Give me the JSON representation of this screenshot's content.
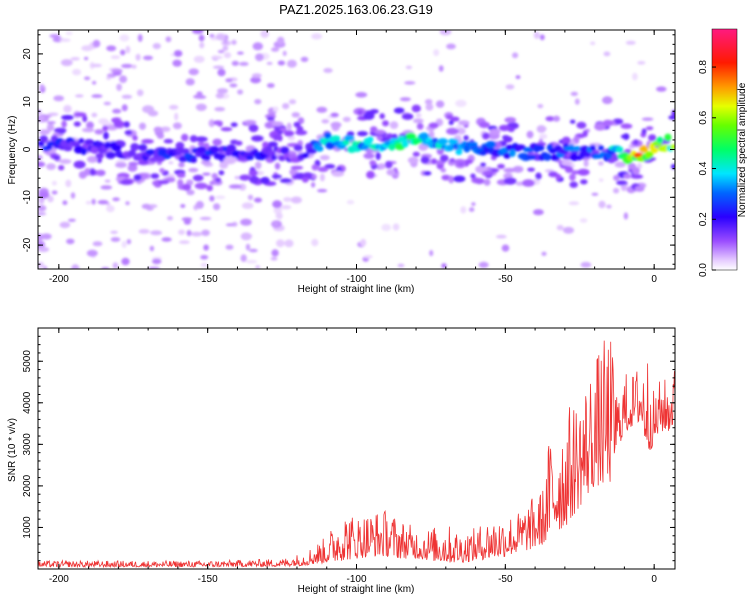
{
  "page_title": "PAZ1.2025.163.06.23.G19",
  "chart_data": [
    {
      "type": "heatmap",
      "title": "PAZ1.2025.163.06.23.G19",
      "xlabel": "Height of straight line (km)",
      "ylabel": "Frequency (Hz)",
      "xlim": [
        -207,
        7
      ],
      "ylim": [
        -25,
        25
      ],
      "x_ticks": [
        "-200",
        "-150",
        "-100",
        "-50",
        "0"
      ],
      "y_ticks": [
        "20",
        "10",
        "0",
        "-10",
        "-20"
      ],
      "colorbar": {
        "label": "Normalized spectral amplitude",
        "range": [
          0.0,
          0.95
        ],
        "ticks": [
          "0.0",
          "0.2",
          "0.4",
          "0.6",
          "0.8"
        ],
        "colormap": "rainbow (white-violet-blue-cyan-green-yellow-red-magenta)"
      },
      "ridge": {
        "description": "Dominant frequency ridge",
        "x": [
          -205,
          -190,
          -175,
          -160,
          -145,
          -130,
          -120,
          -110,
          -100,
          -90,
          -80,
          -75,
          -65,
          -55,
          -45,
          -35,
          -25,
          -15,
          -10,
          -5,
          0,
          5
        ],
        "frequency": [
          1.5,
          0.5,
          -0.5,
          -1.5,
          -1,
          -0.5,
          -1,
          2,
          1,
          1,
          2,
          2,
          0,
          0,
          -0.5,
          -0.5,
          -0.5,
          -0.5,
          -1.5,
          -1.5,
          0.5,
          1.5
        ],
        "amplitude": [
          0.25,
          0.2,
          0.2,
          0.25,
          0.25,
          0.2,
          0.15,
          0.4,
          0.45,
          0.5,
          0.45,
          0.4,
          0.35,
          0.3,
          0.3,
          0.3,
          0.3,
          0.3,
          0.7,
          0.8,
          0.85,
          0.6
        ]
      }
    },
    {
      "type": "line",
      "xlabel": "Height of straight line (km)",
      "ylabel": "SNR (10 * v/v)",
      "xlim": [
        -207,
        7
      ],
      "ylim": [
        0,
        5800
      ],
      "x_ticks": [
        "-200",
        "-150",
        "-100",
        "-50",
        "0"
      ],
      "y_ticks": [
        "1000",
        "2000",
        "3000",
        "4000",
        "5000"
      ],
      "line_color": "#ee3333",
      "envelope": {
        "x": [
          -207,
          -180,
          -150,
          -125,
          -118,
          -110,
          -105,
          -100,
          -95,
          -90,
          -85,
          -80,
          -75,
          -70,
          -65,
          -60,
          -55,
          -50,
          -45,
          -40,
          -37,
          -35,
          -30,
          -25,
          -20,
          -15,
          -12,
          -10,
          -8,
          -5,
          -2,
          0,
          2,
          5,
          7
        ],
        "min": [
          50,
          50,
          50,
          60,
          80,
          150,
          200,
          250,
          300,
          300,
          250,
          250,
          200,
          150,
          150,
          200,
          250,
          300,
          400,
          500,
          600,
          800,
          1000,
          1500,
          2000,
          2000,
          3000,
          3200,
          3400,
          3500,
          2800,
          3000,
          3300,
          3300,
          3500
        ],
        "max": [
          200,
          200,
          200,
          250,
          400,
          800,
          1450,
          1300,
          1400,
          1450,
          1200,
          1000,
          1000,
          1100,
          900,
          1000,
          1250,
          1300,
          1400,
          1800,
          2000,
          3400,
          3800,
          4300,
          5100,
          5800,
          4200,
          4800,
          4600,
          5000,
          5300,
          4200,
          4600,
          4600,
          4900
        ]
      }
    }
  ]
}
